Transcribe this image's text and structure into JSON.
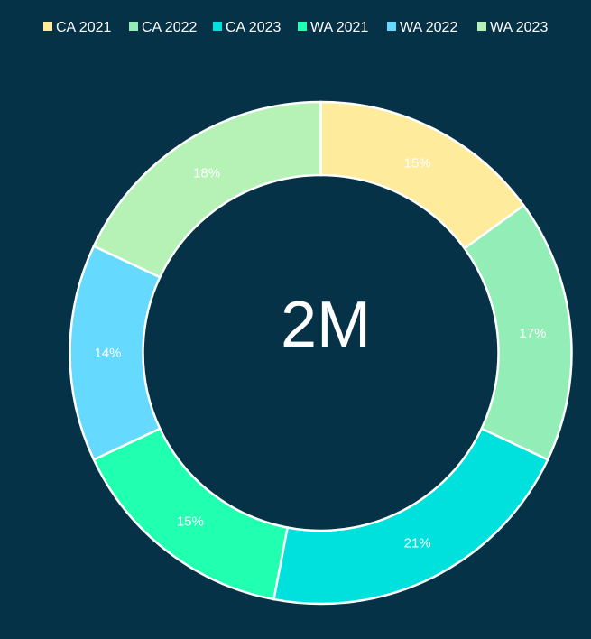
{
  "chart_data": {
    "type": "pie",
    "subtype": "donut",
    "center_label": "2M",
    "legend_position": "top",
    "categories": [
      "CA 2021",
      "CA 2022",
      "CA 2023",
      "WA 2021",
      "WA 2022",
      "WA 2023"
    ],
    "values": [
      15,
      17,
      21,
      15,
      14,
      18
    ],
    "data_labels": [
      "15%",
      "17%",
      "21%",
      "15%",
      "14%",
      "18%"
    ],
    "colors": [
      "#FFEB9C",
      "#92EDB6",
      "#00E0DC",
      "#21FFB0",
      "#66D9FF",
      "#B6F2B5"
    ],
    "background": "#053246"
  }
}
